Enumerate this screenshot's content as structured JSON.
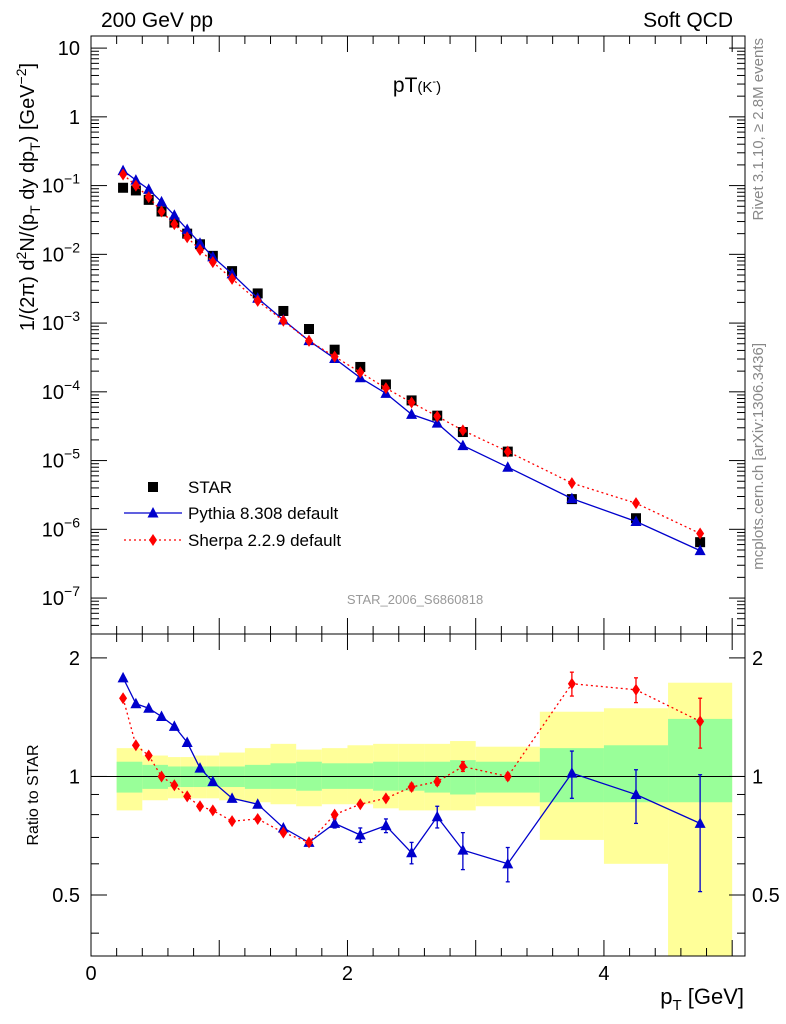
{
  "header": {
    "left": "200 GeV pp",
    "right": "Soft QCD",
    "side_top": "Rivet 3.1.10, ≥ 2.8M events",
    "side_bottom": "mcplots.cern.ch [arXiv:1306.3436]"
  },
  "chart_data": [
    {
      "type": "scatter",
      "panel": "main",
      "title": "pT(K⁻)",
      "xlabel": "p_T [GeV]",
      "ylabel": "1/(2π) d²N/(p_T dy dp_T) [GeV⁻²]",
      "xlim": [
        0,
        5.1
      ],
      "ylim": [
        3e-08,
        15
      ],
      "y_scale": "log",
      "y_ticks": [
        {
          "v": 1e-07,
          "base": "10",
          "exp": "−7"
        },
        {
          "v": 1e-06,
          "base": "10",
          "exp": "−6"
        },
        {
          "v": 1e-05,
          "base": "10",
          "exp": "−5"
        },
        {
          "v": 0.0001,
          "base": "10",
          "exp": "−4"
        },
        {
          "v": 0.001,
          "base": "10",
          "exp": "−3"
        },
        {
          "v": 0.01,
          "base": "10",
          "exp": "−2"
        },
        {
          "v": 0.1,
          "base": "10",
          "exp": "−1"
        },
        {
          "v": 1,
          "base": "1",
          "exp": ""
        },
        {
          "v": 10,
          "base": "10",
          "exp": ""
        }
      ],
      "annotation": "STAR_2006_S6860818",
      "legend_position": "bottom-left",
      "series": [
        {
          "name": "STAR",
          "color": "#000000",
          "marker": "square",
          "x": [
            0.25,
            0.35,
            0.45,
            0.55,
            0.65,
            0.75,
            0.85,
            0.95,
            1.1,
            1.3,
            1.5,
            1.7,
            1.9,
            2.1,
            2.3,
            2.5,
            2.7,
            2.9,
            3.25,
            3.75,
            4.25,
            4.75
          ],
          "y": [
            0.093,
            0.085,
            0.062,
            0.042,
            0.029,
            0.02,
            0.014,
            0.0095,
            0.0057,
            0.0027,
            0.0015,
            0.00082,
            0.00041,
            0.00023,
            0.000128,
            7.5e-05,
            4.5e-05,
            2.6e-05,
            1.35e-05,
            2.75e-06,
            1.45e-06,
            6.5e-07
          ]
        },
        {
          "name": "Pythia 8.308 default",
          "color": "#0000cc",
          "marker": "triangle",
          "line": "solid",
          "x": [
            0.25,
            0.35,
            0.45,
            0.55,
            0.65,
            0.75,
            0.85,
            0.95,
            1.1,
            1.3,
            1.5,
            1.7,
            1.9,
            2.1,
            2.3,
            2.5,
            2.7,
            2.9,
            3.25,
            3.75,
            4.25,
            4.75
          ],
          "y": [
            0.165,
            0.12,
            0.088,
            0.058,
            0.037,
            0.023,
            0.0145,
            0.0092,
            0.0052,
            0.0023,
            0.00111,
            0.000555,
            0.000305,
            0.00016,
            9.5e-05,
            4.7e-05,
            3.5e-05,
            1.65e-05,
            8e-06,
            2.8e-06,
            1.3e-06,
            4.9e-07
          ]
        },
        {
          "name": "Sherpa 2.2.9 default",
          "color": "#ff0000",
          "marker": "diamond",
          "line": "dotted",
          "x": [
            0.25,
            0.35,
            0.45,
            0.55,
            0.65,
            0.75,
            0.85,
            0.95,
            1.1,
            1.3,
            1.5,
            1.7,
            1.9,
            2.1,
            2.3,
            2.5,
            2.7,
            2.9,
            3.25,
            3.75,
            4.25,
            4.75
          ],
          "y": [
            0.145,
            0.1,
            0.068,
            0.042,
            0.0275,
            0.0177,
            0.0116,
            0.0077,
            0.0044,
            0.0021,
            0.00108,
            0.00055,
            0.000325,
            0.000192,
            0.000113,
            7e-05,
            4.4e-05,
            2.75e-05,
            1.35e-05,
            4.7e-06,
            2.4e-06,
            8.7e-07
          ]
        }
      ]
    },
    {
      "type": "scatter",
      "panel": "ratio",
      "xlabel": "p_T [GeV]",
      "ylabel": "Ratio to STAR",
      "xlim": [
        0,
        5.1
      ],
      "ylim": [
        0.35,
        2.3
      ],
      "y_scale": "log",
      "x_ticks": [
        0,
        2,
        4
      ],
      "y_ticks": [
        0.5,
        1,
        2
      ],
      "reference_line": 1,
      "bands": [
        {
          "x0": 0.2,
          "x1": 0.4,
          "inner": [
            0.91,
            1.09
          ],
          "outer": [
            0.82,
            1.18
          ]
        },
        {
          "x0": 0.4,
          "x1": 0.6,
          "inner": [
            0.93,
            1.07
          ],
          "outer": [
            0.87,
            1.13
          ]
        },
        {
          "x0": 0.6,
          "x1": 0.7,
          "inner": [
            0.94,
            1.06
          ],
          "outer": [
            0.88,
            1.12
          ]
        },
        {
          "x0": 0.7,
          "x1": 0.8,
          "inner": [
            0.94,
            1.06
          ],
          "outer": [
            0.88,
            1.12
          ]
        },
        {
          "x0": 0.8,
          "x1": 0.9,
          "inner": [
            0.94,
            1.06
          ],
          "outer": [
            0.88,
            1.13
          ]
        },
        {
          "x0": 0.9,
          "x1": 1.0,
          "inner": [
            0.94,
            1.06
          ],
          "outer": [
            0.88,
            1.13
          ]
        },
        {
          "x0": 1.0,
          "x1": 1.2,
          "inner": [
            0.94,
            1.06
          ],
          "outer": [
            0.87,
            1.15
          ]
        },
        {
          "x0": 1.2,
          "x1": 1.4,
          "inner": [
            0.93,
            1.07
          ],
          "outer": [
            0.86,
            1.18
          ]
        },
        {
          "x0": 1.4,
          "x1": 1.6,
          "inner": [
            0.93,
            1.08
          ],
          "outer": [
            0.85,
            1.21
          ]
        },
        {
          "x0": 1.6,
          "x1": 1.8,
          "inner": [
            0.92,
            1.09
          ],
          "outer": [
            0.84,
            1.17
          ]
        },
        {
          "x0": 1.8,
          "x1": 2.0,
          "inner": [
            0.93,
            1.08
          ],
          "outer": [
            0.85,
            1.18
          ]
        },
        {
          "x0": 2.0,
          "x1": 2.2,
          "inner": [
            0.93,
            1.08
          ],
          "outer": [
            0.85,
            1.2
          ]
        },
        {
          "x0": 2.2,
          "x1": 2.4,
          "inner": [
            0.92,
            1.09
          ],
          "outer": [
            0.83,
            1.21
          ]
        },
        {
          "x0": 2.4,
          "x1": 2.6,
          "inner": [
            0.92,
            1.09
          ],
          "outer": [
            0.82,
            1.21
          ]
        },
        {
          "x0": 2.6,
          "x1": 2.8,
          "inner": [
            0.91,
            1.09
          ],
          "outer": [
            0.82,
            1.21
          ]
        },
        {
          "x0": 2.8,
          "x1": 3.0,
          "inner": [
            0.9,
            1.1
          ],
          "outer": [
            0.82,
            1.23
          ]
        },
        {
          "x0": 3.0,
          "x1": 3.5,
          "inner": [
            0.91,
            1.09
          ],
          "outer": [
            0.84,
            1.19
          ]
        },
        {
          "x0": 3.5,
          "x1": 4.0,
          "inner": [
            0.86,
            1.18
          ],
          "outer": [
            0.69,
            1.46
          ]
        },
        {
          "x0": 4.0,
          "x1": 4.5,
          "inner": [
            0.86,
            1.2
          ],
          "outer": [
            0.6,
            1.49
          ]
        },
        {
          "x0": 4.5,
          "x1": 5.0,
          "inner": [
            0.86,
            1.4
          ],
          "outer": [
            0.33,
            1.73
          ]
        }
      ],
      "series": [
        {
          "name": "Pythia 8.308 default",
          "color": "#0000cc",
          "marker": "triangle",
          "line": "solid",
          "x": [
            0.25,
            0.35,
            0.45,
            0.55,
            0.65,
            0.75,
            0.85,
            0.95,
            1.1,
            1.3,
            1.5,
            1.7,
            1.9,
            2.1,
            2.3,
            2.5,
            2.7,
            2.9,
            3.25,
            3.75,
            4.25,
            4.75
          ],
          "y": [
            1.78,
            1.53,
            1.49,
            1.42,
            1.34,
            1.22,
            1.05,
            0.97,
            0.88,
            0.85,
            0.74,
            0.68,
            0.76,
            0.71,
            0.75,
            0.64,
            0.79,
            0.65,
            0.6,
            1.02,
            0.9,
            0.76
          ],
          "err": [
            0,
            0,
            0,
            0,
            0,
            0,
            0,
            0,
            0,
            0,
            0,
            0,
            0.02,
            0.03,
            0.03,
            0.04,
            0.05,
            0.07,
            0.06,
            0.14,
            0.14,
            0.25
          ]
        },
        {
          "name": "Sherpa 2.2.9 default",
          "color": "#ff0000",
          "marker": "diamond",
          "line": "dotted",
          "x": [
            0.25,
            0.35,
            0.45,
            0.55,
            0.65,
            0.75,
            0.85,
            0.95,
            1.1,
            1.3,
            1.5,
            1.7,
            1.9,
            2.1,
            2.3,
            2.5,
            2.7,
            2.9,
            3.25,
            3.75,
            4.25,
            4.75
          ],
          "y": [
            1.58,
            1.2,
            1.13,
            1.0,
            0.95,
            0.89,
            0.84,
            0.82,
            0.77,
            0.78,
            0.72,
            0.68,
            0.8,
            0.85,
            0.88,
            0.94,
            0.97,
            1.06,
            1.0,
            1.72,
            1.66,
            1.38
          ],
          "err": [
            0,
            0,
            0,
            0,
            0,
            0,
            0,
            0,
            0,
            0,
            0,
            0,
            0,
            0,
            0,
            0.02,
            0.02,
            0.03,
            0.02,
            0.12,
            0.12,
            0.2
          ]
        }
      ]
    }
  ]
}
